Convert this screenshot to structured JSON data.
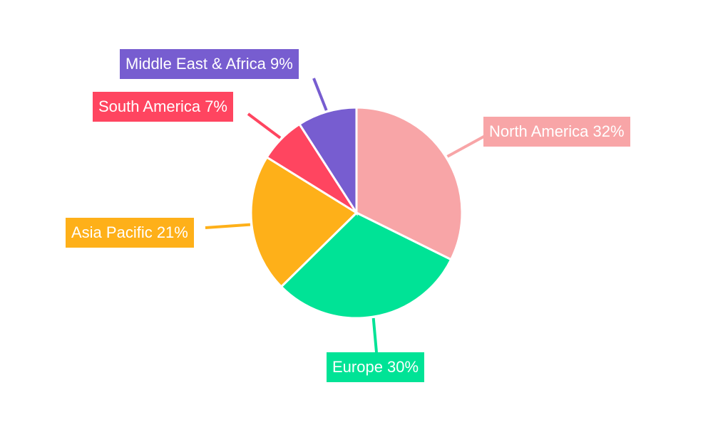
{
  "chart_data": {
    "type": "pie",
    "title": "",
    "categories": [
      "North America",
      "Europe",
      "Asia Pacific",
      "South America",
      "Middle East & Africa"
    ],
    "values": [
      32,
      30,
      21,
      7,
      9
    ],
    "unit": "%",
    "colors": [
      "#f8a5a7",
      "#00e396",
      "#feb019",
      "#ff4560",
      "#775dd0"
    ],
    "labels": [
      "North America 32%",
      "Europe 30%",
      "Asia Pacific 21%",
      "South America 7%",
      "Middle East & Africa 9%"
    ],
    "start_angle_deg": 0,
    "direction": "clockwise",
    "legend": "none"
  }
}
